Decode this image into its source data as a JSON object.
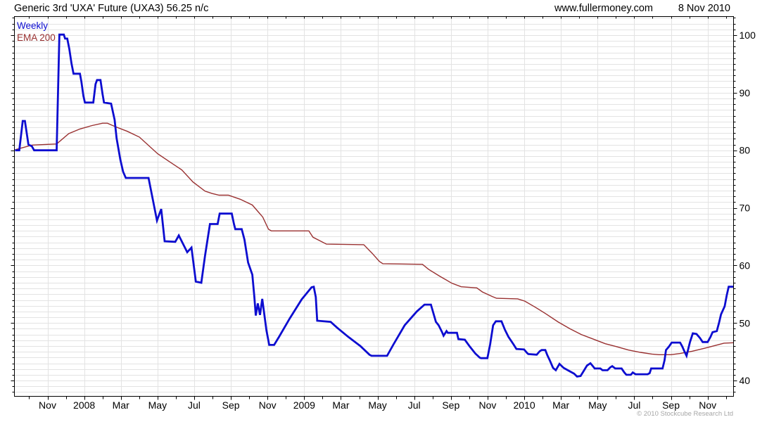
{
  "header": {
    "title": "Generic 3rd 'UXA' Future (UXA3) 56.25 n/c",
    "site": "www.fullermoney.com",
    "date": "8 Nov 2010"
  },
  "legend": [
    {
      "label": "Weekly",
      "color": "#0d0dd0"
    },
    {
      "label": "EMA 200",
      "color": "#993030"
    }
  ],
  "footer": {
    "copyright": "© 2010 Stockcube Research Ltd"
  },
  "colors": {
    "background": "#ffffff",
    "axis": "#000000",
    "grid": "#e3e3e3",
    "tick_label": "#000000"
  },
  "chart_data": {
    "type": "line",
    "title": "Generic 3rd 'UXA' Future (UXA3) 56.25 n/c",
    "x_unit": "months since Nov 2007",
    "xlim": [
      -1.8,
      37.6
    ],
    "ylim": [
      37.3,
      103.3
    ],
    "grid": true,
    "legend_position": "top-left",
    "y_axis_side": "right",
    "y_major_ticks": [
      40,
      50,
      60,
      70,
      80,
      90,
      100
    ],
    "y_minor_step": 1,
    "x_minor_step": 1,
    "x_ticks": [
      {
        "m": 0,
        "label": "Nov"
      },
      {
        "m": 2,
        "label": "2008"
      },
      {
        "m": 4,
        "label": "Mar"
      },
      {
        "m": 6,
        "label": "May"
      },
      {
        "m": 8,
        "label": "Jul"
      },
      {
        "m": 10,
        "label": "Sep"
      },
      {
        "m": 12,
        "label": "Nov"
      },
      {
        "m": 14,
        "label": "2009"
      },
      {
        "m": 16,
        "label": "Mar"
      },
      {
        "m": 18,
        "label": "May"
      },
      {
        "m": 20,
        "label": "Jul"
      },
      {
        "m": 22,
        "label": "Sep"
      },
      {
        "m": 24,
        "label": "Nov"
      },
      {
        "m": 26,
        "label": "2010"
      },
      {
        "m": 28,
        "label": "Mar"
      },
      {
        "m": 30,
        "label": "May"
      },
      {
        "m": 32,
        "label": "Jul"
      },
      {
        "m": 34,
        "label": "Sep"
      },
      {
        "m": 36,
        "label": "Nov"
      }
    ],
    "series": [
      {
        "name": "Weekly",
        "color": "#0d0dd0",
        "width": 2.8,
        "points": [
          [
            -1.77,
            80
          ],
          [
            -1.54,
            80
          ],
          [
            -1.35,
            85.1
          ],
          [
            -1.23,
            85.1
          ],
          [
            -1.04,
            81
          ],
          [
            -0.85,
            80.7
          ],
          [
            -0.73,
            80
          ],
          [
            0.5,
            80
          ],
          [
            0.65,
            100.1
          ],
          [
            0.89,
            100.1
          ],
          [
            0.96,
            99.4
          ],
          [
            1.08,
            99.4
          ],
          [
            1.19,
            97.6
          ],
          [
            1.31,
            95.1
          ],
          [
            1.42,
            93.3
          ],
          [
            1.77,
            93.3
          ],
          [
            1.85,
            91.9
          ],
          [
            1.96,
            89.4
          ],
          [
            2.04,
            88.3
          ],
          [
            2.5,
            88.3
          ],
          [
            2.62,
            91.5
          ],
          [
            2.7,
            92.2
          ],
          [
            2.89,
            92.2
          ],
          [
            3,
            89.8
          ],
          [
            3.08,
            88.3
          ],
          [
            3.47,
            88.1
          ],
          [
            3.66,
            85.3
          ],
          [
            3.77,
            82.1
          ],
          [
            3.97,
            78.4
          ],
          [
            4.12,
            76.3
          ],
          [
            4.27,
            75.2
          ],
          [
            5.51,
            75.2
          ],
          [
            5.97,
            67.8
          ],
          [
            6.2,
            69.8
          ],
          [
            6.39,
            64.2
          ],
          [
            6.97,
            64.1
          ],
          [
            7.16,
            65.2
          ],
          [
            7.62,
            62.3
          ],
          [
            7.85,
            63.1
          ],
          [
            8.09,
            57.2
          ],
          [
            8.39,
            57
          ],
          [
            8.59,
            61.7
          ],
          [
            8.86,
            67.2
          ],
          [
            9.28,
            67.2
          ],
          [
            9.39,
            69
          ],
          [
            10.05,
            69
          ],
          [
            10.17,
            67.2
          ],
          [
            10.24,
            66.3
          ],
          [
            10.59,
            66.3
          ],
          [
            10.74,
            64.5
          ],
          [
            10.94,
            60.5
          ],
          [
            11.17,
            58.4
          ],
          [
            11.28,
            54.5
          ],
          [
            11.36,
            51.3
          ],
          [
            11.47,
            53.4
          ],
          [
            11.59,
            51.4
          ],
          [
            11.71,
            54.2
          ],
          [
            11.94,
            48.7
          ],
          [
            12.09,
            46.2
          ],
          [
            12.36,
            46.2
          ],
          [
            12.63,
            47.6
          ],
          [
            13.21,
            50.8
          ],
          [
            13.86,
            54.1
          ],
          [
            14.4,
            56.2
          ],
          [
            14.52,
            56.3
          ],
          [
            14.63,
            54.5
          ],
          [
            14.71,
            50.4
          ],
          [
            15.44,
            50.2
          ],
          [
            15.79,
            49.2
          ],
          [
            16.4,
            47.6
          ],
          [
            17.06,
            46
          ],
          [
            17.56,
            44.5
          ],
          [
            17.67,
            44.3
          ],
          [
            18.52,
            44.3
          ],
          [
            18.87,
            46.3
          ],
          [
            19.48,
            49.6
          ],
          [
            20.14,
            52
          ],
          [
            20.56,
            53.2
          ],
          [
            20.91,
            53.2
          ],
          [
            21.18,
            50.2
          ],
          [
            21.33,
            49.6
          ],
          [
            21.52,
            48.4
          ],
          [
            21.6,
            47.8
          ],
          [
            21.76,
            48.6
          ],
          [
            21.83,
            48.3
          ],
          [
            22.33,
            48.3
          ],
          [
            22.41,
            47.2
          ],
          [
            22.76,
            47.1
          ],
          [
            23.03,
            45.9
          ],
          [
            23.33,
            44.7
          ],
          [
            23.57,
            44
          ],
          [
            23.64,
            43.9
          ],
          [
            23.99,
            43.9
          ],
          [
            24.14,
            46.3
          ],
          [
            24.3,
            49.6
          ],
          [
            24.45,
            50.3
          ],
          [
            24.76,
            50.3
          ],
          [
            24.95,
            48.8
          ],
          [
            25.14,
            47.6
          ],
          [
            25.41,
            46.3
          ],
          [
            25.57,
            45.5
          ],
          [
            25.99,
            45.4
          ],
          [
            26.15,
            44.8
          ],
          [
            26.22,
            44.6
          ],
          [
            26.68,
            44.5
          ],
          [
            26.84,
            45.1
          ],
          [
            26.95,
            45.3
          ],
          [
            27.15,
            45.3
          ],
          [
            27.26,
            44.4
          ],
          [
            27.38,
            43.6
          ],
          [
            27.57,
            42.2
          ],
          [
            27.72,
            41.8
          ],
          [
            27.92,
            42.9
          ],
          [
            28.15,
            42.2
          ],
          [
            28.49,
            41.6
          ],
          [
            28.72,
            41.2
          ],
          [
            28.88,
            40.7
          ],
          [
            29.07,
            40.8
          ],
          [
            29.23,
            41.6
          ],
          [
            29.42,
            42.6
          ],
          [
            29.61,
            43
          ],
          [
            29.77,
            42.4
          ],
          [
            29.84,
            42.1
          ],
          [
            30.15,
            42.1
          ],
          [
            30.27,
            41.8
          ],
          [
            30.54,
            41.8
          ],
          [
            30.69,
            42.3
          ],
          [
            30.8,
            42.5
          ],
          [
            30.96,
            42.1
          ],
          [
            31.31,
            42.1
          ],
          [
            31.46,
            41.4
          ],
          [
            31.57,
            41
          ],
          [
            31.81,
            41
          ],
          [
            31.92,
            41.4
          ],
          [
            32.07,
            41.1
          ],
          [
            32.73,
            41.1
          ],
          [
            32.84,
            41.3
          ],
          [
            32.92,
            42.1
          ],
          [
            33.54,
            42.1
          ],
          [
            33.65,
            43.5
          ],
          [
            33.73,
            45.3
          ],
          [
            33.89,
            45.9
          ],
          [
            34.04,
            46.6
          ],
          [
            34.5,
            46.6
          ],
          [
            34.62,
            45.9
          ],
          [
            34.73,
            45.1
          ],
          [
            34.85,
            44.3
          ],
          [
            35.04,
            46.7
          ],
          [
            35.19,
            48.2
          ],
          [
            35.39,
            48.1
          ],
          [
            35.58,
            47.4
          ],
          [
            35.73,
            46.7
          ],
          [
            36,
            46.7
          ],
          [
            36.16,
            47.6
          ],
          [
            36.27,
            48.4
          ],
          [
            36.5,
            48.6
          ],
          [
            36.62,
            50
          ],
          [
            36.73,
            51.5
          ],
          [
            36.93,
            52.9
          ],
          [
            37.04,
            54.8
          ],
          [
            37.15,
            56.3
          ],
          [
            37.6,
            56.3
          ]
        ]
      },
      {
        "name": "EMA 200",
        "color": "#993030",
        "width": 1.4,
        "points": [
          [
            -1.77,
            80.1
          ],
          [
            -0.85,
            80.9
          ],
          [
            0.5,
            81.1
          ],
          [
            1.16,
            82.9
          ],
          [
            1.77,
            83.7
          ],
          [
            2.43,
            84.3
          ],
          [
            3,
            84.7
          ],
          [
            3.27,
            84.7
          ],
          [
            3.7,
            84.1
          ],
          [
            4.35,
            83.3
          ],
          [
            5.01,
            82.3
          ],
          [
            6.01,
            79.4
          ],
          [
            6.66,
            78
          ],
          [
            7.32,
            76.6
          ],
          [
            7.93,
            74.5
          ],
          [
            8.59,
            72.9
          ],
          [
            8.97,
            72.5
          ],
          [
            9.36,
            72.2
          ],
          [
            9.86,
            72.2
          ],
          [
            10.51,
            71.5
          ],
          [
            11.17,
            70.5
          ],
          [
            11.47,
            69.4
          ],
          [
            11.74,
            68.4
          ],
          [
            12.05,
            66.3
          ],
          [
            12.21,
            66
          ],
          [
            14.25,
            66
          ],
          [
            14.48,
            64.9
          ],
          [
            15.21,
            63.7
          ],
          [
            17.25,
            63.6
          ],
          [
            17.71,
            62.1
          ],
          [
            18.1,
            60.7
          ],
          [
            18.29,
            60.3
          ],
          [
            20.45,
            60.2
          ],
          [
            20.79,
            59.3
          ],
          [
            21.41,
            58.1
          ],
          [
            22.06,
            56.9
          ],
          [
            22.56,
            56.3
          ],
          [
            23.41,
            56.1
          ],
          [
            23.72,
            55.4
          ],
          [
            24.26,
            54.6
          ],
          [
            24.49,
            54.3
          ],
          [
            25.64,
            54.2
          ],
          [
            26.03,
            53.8
          ],
          [
            26.57,
            52.8
          ],
          [
            27.18,
            51.6
          ],
          [
            27.84,
            50.2
          ],
          [
            28.49,
            49
          ],
          [
            29.11,
            48
          ],
          [
            29.77,
            47.2
          ],
          [
            30.42,
            46.4
          ],
          [
            31.03,
            45.9
          ],
          [
            31.69,
            45.3
          ],
          [
            32.34,
            44.9
          ],
          [
            32.96,
            44.6
          ],
          [
            33.35,
            44.5
          ],
          [
            34,
            44.5
          ],
          [
            34.5,
            44.7
          ],
          [
            35.15,
            45.1
          ],
          [
            35.81,
            45.6
          ],
          [
            36.42,
            46.1
          ],
          [
            36.89,
            46.5
          ],
          [
            37.6,
            46.6
          ]
        ]
      }
    ]
  }
}
